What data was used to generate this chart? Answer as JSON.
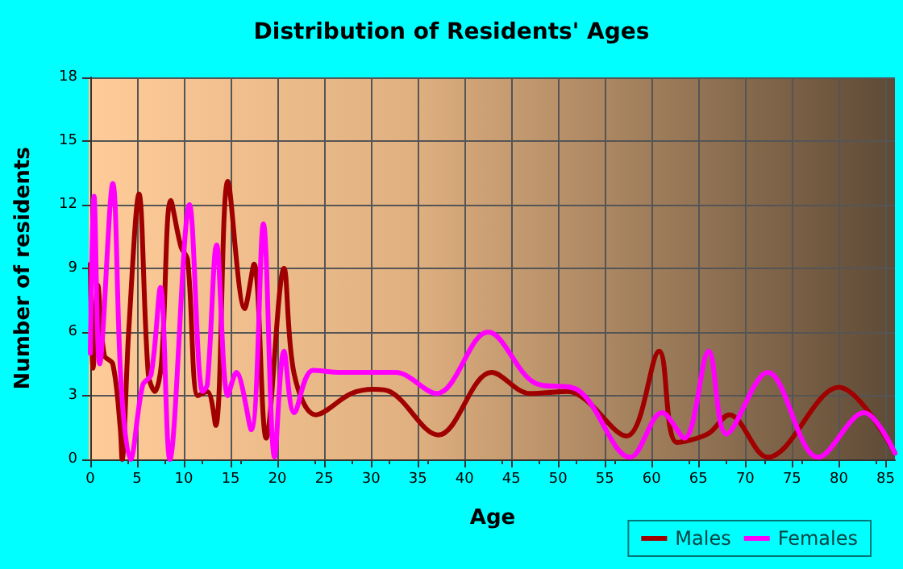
{
  "chart_data": {
    "type": "line",
    "title": "Distribution of Residents' Ages",
    "xlabel": "Age",
    "ylabel": "Number of residents",
    "xlim": [
      0,
      86
    ],
    "xticks": [
      0,
      5,
      10,
      15,
      20,
      25,
      30,
      35,
      40,
      45,
      50,
      55,
      60,
      65,
      70,
      75,
      80,
      85
    ],
    "ylim": [
      0,
      18
    ],
    "yticks": [
      0,
      3,
      6,
      9,
      12,
      15,
      18
    ],
    "grid": true,
    "legend": "bottom right",
    "marker": "none",
    "line_style": "solid",
    "series": [
      {
        "name": "Males",
        "color": "#a00000",
        "x": [
          0,
          0.3,
          0.8,
          1.5,
          2.4,
          3.2,
          3.4,
          4.1,
          5.2,
          6.2,
          6.9,
          7.6,
          8.6,
          9.7,
          10.4,
          11.5,
          12.5,
          13.4,
          14.7,
          16.5,
          17.5,
          18.8,
          20.7,
          21.8,
          24.1,
          27.9,
          30.3,
          32,
          37.2,
          42.9,
          47,
          51,
          57.3,
          60.8,
          62.7,
          66,
          68.3,
          72.4,
          80,
          86
        ],
        "values": [
          9.2,
          4.3,
          8.2,
          4.9,
          4.5,
          1.5,
          0,
          6,
          12.5,
          4,
          3.2,
          4.5,
          12.2,
          10,
          9.4,
          3,
          3.2,
          1.6,
          13.1,
          7.1,
          9.2,
          1,
          9,
          4,
          2.1,
          3.1,
          3.3,
          3.2,
          1.15,
          4.1,
          3.1,
          3.2,
          1.1,
          5.1,
          0.8,
          1.2,
          2.1,
          0.1,
          3.4,
          0.3
        ]
      },
      {
        "name": "Females",
        "color": "#ff00ff",
        "x": [
          0,
          0.4,
          1,
          2.4,
          3.3,
          4.3,
          5.6,
          6.5,
          7.5,
          8.5,
          10.6,
          12,
          12.5,
          13.5,
          14.7,
          15.6,
          17.2,
          18.5,
          19.7,
          20.7,
          21.8,
          23.8,
          26.8,
          32.6,
          37,
          42.5,
          47.5,
          52,
          57.7,
          61.1,
          63.5,
          66.1,
          68,
          72.4,
          77.8,
          82.7,
          86
        ],
        "values": [
          5,
          12.4,
          4.5,
          13,
          3.5,
          0,
          3.5,
          4,
          8.1,
          0,
          12,
          3.2,
          3.5,
          10.1,
          3,
          4.1,
          1.4,
          11.1,
          0.1,
          5.1,
          2.2,
          4.2,
          4.1,
          4.1,
          3.1,
          6,
          3.6,
          3.3,
          0.1,
          2.2,
          1,
          5.1,
          1.2,
          4.1,
          0.1,
          2.2,
          0.3
        ]
      }
    ]
  }
}
